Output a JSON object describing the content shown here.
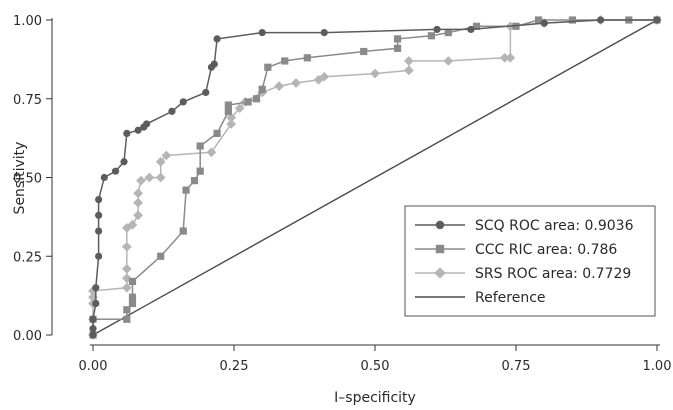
{
  "chart_data": {
    "type": "line",
    "xlabel": "I–specificity",
    "ylabel": "Sensitivity",
    "xlim": [
      0,
      1
    ],
    "ylim": [
      0,
      1
    ],
    "x_ticks": [
      "0.00",
      "0.25",
      "0.50",
      "0.75",
      "1.00"
    ],
    "y_ticks": [
      "0.00",
      "0.25",
      "0.50",
      "0.75",
      "1.00"
    ],
    "legend_position": "bottom-right",
    "series": [
      {
        "name": "SCQ ROC area: 0.9036",
        "color": "#5c5c5c",
        "marker": "circle",
        "points": [
          [
            0,
            0
          ],
          [
            0,
            0.02
          ],
          [
            0,
            0.05
          ],
          [
            0.005,
            0.1
          ],
          [
            0.005,
            0.15
          ],
          [
            0.01,
            0.25
          ],
          [
            0.01,
            0.33
          ],
          [
            0.01,
            0.38
          ],
          [
            0.01,
            0.43
          ],
          [
            0.02,
            0.5
          ],
          [
            0.04,
            0.52
          ],
          [
            0.055,
            0.55
          ],
          [
            0.06,
            0.64
          ],
          [
            0.08,
            0.65
          ],
          [
            0.09,
            0.66
          ],
          [
            0.095,
            0.67
          ],
          [
            0.14,
            0.71
          ],
          [
            0.16,
            0.74
          ],
          [
            0.2,
            0.77
          ],
          [
            0.21,
            0.85
          ],
          [
            0.215,
            0.86
          ],
          [
            0.22,
            0.94
          ],
          [
            0.3,
            0.96
          ],
          [
            0.41,
            0.96
          ],
          [
            0.61,
            0.97
          ],
          [
            0.67,
            0.97
          ],
          [
            0.8,
            0.99
          ],
          [
            0.9,
            1.0
          ],
          [
            1.0,
            1.0
          ]
        ]
      },
      {
        "name": "CCC RIC area: 0.786",
        "color": "#8a8a8a",
        "marker": "square",
        "points": [
          [
            0,
            0
          ],
          [
            0,
            0.05
          ],
          [
            0.06,
            0.05
          ],
          [
            0.06,
            0.08
          ],
          [
            0.07,
            0.1
          ],
          [
            0.07,
            0.12
          ],
          [
            0.07,
            0.17
          ],
          [
            0.12,
            0.25
          ],
          [
            0.16,
            0.33
          ],
          [
            0.165,
            0.46
          ],
          [
            0.18,
            0.49
          ],
          [
            0.19,
            0.52
          ],
          [
            0.19,
            0.6
          ],
          [
            0.22,
            0.64
          ],
          [
            0.24,
            0.71
          ],
          [
            0.24,
            0.73
          ],
          [
            0.275,
            0.74
          ],
          [
            0.29,
            0.75
          ],
          [
            0.3,
            0.78
          ],
          [
            0.31,
            0.85
          ],
          [
            0.34,
            0.87
          ],
          [
            0.38,
            0.88
          ],
          [
            0.48,
            0.9
          ],
          [
            0.54,
            0.91
          ],
          [
            0.54,
            0.94
          ],
          [
            0.6,
            0.95
          ],
          [
            0.63,
            0.96
          ],
          [
            0.68,
            0.98
          ],
          [
            0.75,
            0.98
          ],
          [
            0.79,
            1.0
          ],
          [
            0.85,
            1.0
          ],
          [
            0.95,
            1.0
          ],
          [
            1.0,
            1.0
          ]
        ]
      },
      {
        "name": "SRS ROC area: 0.7729",
        "color": "#b5b5b5",
        "marker": "diamond",
        "points": [
          [
            0,
            0
          ],
          [
            0,
            0.05
          ],
          [
            0,
            0.1
          ],
          [
            0,
            0.12
          ],
          [
            0,
            0.14
          ],
          [
            0.06,
            0.15
          ],
          [
            0.06,
            0.18
          ],
          [
            0.06,
            0.21
          ],
          [
            0.06,
            0.28
          ],
          [
            0.06,
            0.34
          ],
          [
            0.07,
            0.35
          ],
          [
            0.08,
            0.38
          ],
          [
            0.08,
            0.42
          ],
          [
            0.08,
            0.45
          ],
          [
            0.085,
            0.49
          ],
          [
            0.1,
            0.5
          ],
          [
            0.12,
            0.5
          ],
          [
            0.12,
            0.55
          ],
          [
            0.13,
            0.57
          ],
          [
            0.21,
            0.58
          ],
          [
            0.245,
            0.67
          ],
          [
            0.245,
            0.69
          ],
          [
            0.26,
            0.72
          ],
          [
            0.27,
            0.74
          ],
          [
            0.3,
            0.77
          ],
          [
            0.33,
            0.79
          ],
          [
            0.36,
            0.8
          ],
          [
            0.4,
            0.81
          ],
          [
            0.41,
            0.82
          ],
          [
            0.5,
            0.83
          ],
          [
            0.56,
            0.84
          ],
          [
            0.56,
            0.87
          ],
          [
            0.63,
            0.87
          ],
          [
            0.73,
            0.88
          ],
          [
            0.74,
            0.88
          ],
          [
            0.74,
            0.98
          ],
          [
            0.8,
            0.99
          ],
          [
            0.9,
            1.0
          ],
          [
            1.0,
            1.0
          ]
        ]
      },
      {
        "name": "Reference",
        "color": "#4a4a4a",
        "marker": "none",
        "points": [
          [
            0,
            0
          ],
          [
            1,
            1
          ]
        ]
      }
    ]
  }
}
